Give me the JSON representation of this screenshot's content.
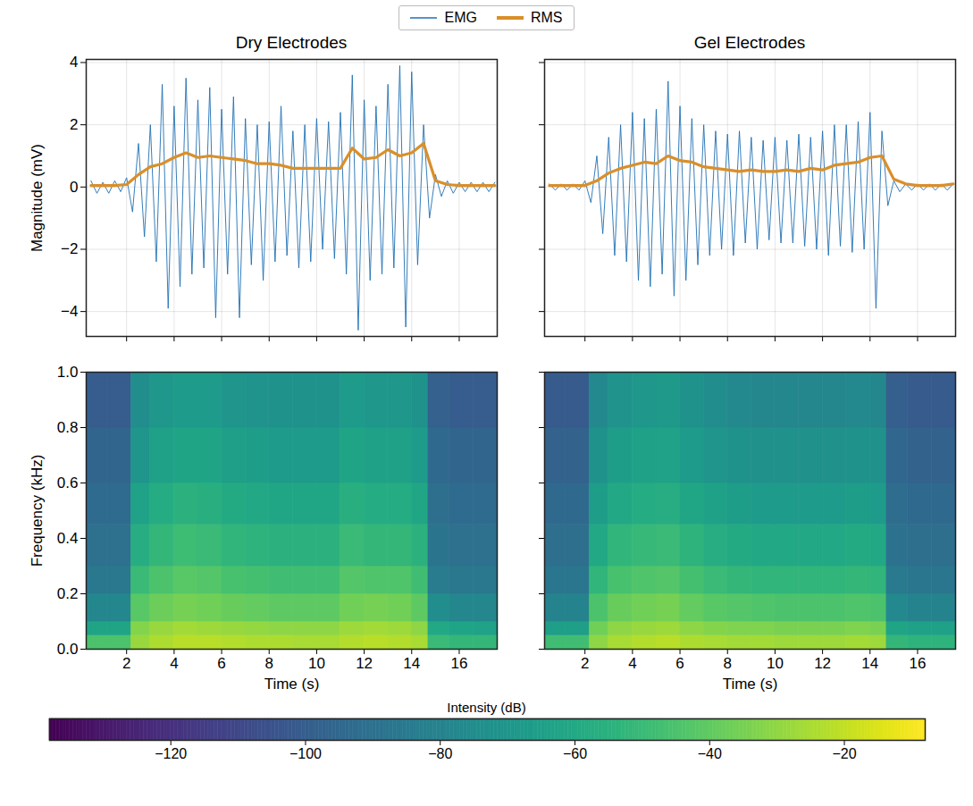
{
  "chart_data": [
    {
      "type": "line",
      "title": "Dry Electrodes",
      "ylabel": "Magnitude (mV)",
      "legend": "top",
      "grid": true,
      "tick_labels": "y",
      "xlim": [
        0.3,
        17.6
      ],
      "xticks": [
        2,
        4,
        6,
        8,
        10,
        12,
        14,
        16
      ],
      "ylim": [
        -4.8,
        4.1
      ],
      "yticks": [
        -4,
        -2,
        0,
        2,
        4
      ],
      "series": [
        {
          "name": "EMG",
          "color": "#1f6fb2",
          "x": [
            0.5,
            0.75,
            1,
            1.25,
            1.5,
            1.75,
            2,
            2.25,
            2.5,
            2.75,
            3,
            3.25,
            3.5,
            3.75,
            4,
            4.25,
            4.5,
            4.75,
            5,
            5.25,
            5.5,
            5.75,
            6,
            6.25,
            6.5,
            6.75,
            7,
            7.25,
            7.5,
            7.75,
            8,
            8.25,
            8.5,
            8.75,
            9,
            9.25,
            9.5,
            9.75,
            10,
            10.25,
            10.5,
            10.75,
            11,
            11.25,
            11.5,
            11.75,
            12,
            12.25,
            12.5,
            12.75,
            13,
            13.25,
            13.5,
            13.75,
            14,
            14.25,
            14.5,
            14.75,
            15,
            15.25,
            15.5,
            15.75,
            16,
            16.25,
            16.5,
            16.75,
            17,
            17.25,
            17.5
          ],
          "values": [
            0.2,
            -0.2,
            0.15,
            -0.2,
            0.2,
            -0.15,
            0.3,
            -0.8,
            1.4,
            -1.6,
            2.0,
            -2.4,
            3.3,
            -3.9,
            2.6,
            -3.2,
            3.5,
            -2.8,
            2.8,
            -2.6,
            3.2,
            -4.2,
            2.5,
            -2.8,
            2.9,
            -4.2,
            2.2,
            -2.5,
            2.0,
            -3.0,
            2.1,
            -2.4,
            2.6,
            -2.2,
            1.8,
            -2.6,
            2.0,
            -2.4,
            2.2,
            -2.0,
            2.1,
            -2.3,
            2.4,
            -2.8,
            3.6,
            -4.6,
            2.8,
            -3.0,
            2.6,
            -2.8,
            3.3,
            -2.6,
            3.9,
            -4.5,
            3.7,
            -2.5,
            2.0,
            -1.0,
            0.4,
            -0.3,
            0.2,
            -0.2,
            0.15,
            -0.15,
            0.15,
            -0.15,
            0.15,
            -0.15,
            0.15
          ]
        },
        {
          "name": "RMS",
          "color": "#d98f2a",
          "x": [
            0.5,
            1,
            1.5,
            2,
            2.5,
            3,
            3.5,
            4,
            4.5,
            5,
            5.5,
            6,
            6.5,
            7,
            7.5,
            8,
            8.5,
            9,
            9.5,
            10,
            10.5,
            11,
            11.5,
            12,
            12.5,
            13,
            13.5,
            14,
            14.5,
            15,
            15.5,
            16,
            16.5,
            17,
            17.5
          ],
          "values": [
            0.05,
            0.05,
            0.05,
            0.08,
            0.4,
            0.65,
            0.75,
            0.95,
            1.1,
            0.95,
            1.0,
            0.95,
            0.9,
            0.85,
            0.75,
            0.75,
            0.7,
            0.6,
            0.6,
            0.6,
            0.6,
            0.6,
            1.25,
            0.9,
            0.95,
            1.2,
            1.0,
            1.1,
            1.4,
            0.2,
            0.08,
            0.05,
            0.05,
            0.05,
            0.05
          ]
        }
      ]
    },
    {
      "type": "line",
      "title": "Gel Electrodes",
      "legend": "top",
      "grid": true,
      "tick_labels": false,
      "xlim": [
        0.3,
        17.6
      ],
      "xticks": [
        2,
        4,
        6,
        8,
        10,
        12,
        14,
        16
      ],
      "ylim": [
        -4.8,
        4.1
      ],
      "yticks": [
        -4,
        -2,
        0,
        2,
        4
      ],
      "series": [
        {
          "name": "EMG",
          "color": "#1f6fb2",
          "x": [
            0.5,
            0.75,
            1,
            1.25,
            1.5,
            1.75,
            2,
            2.25,
            2.5,
            2.75,
            3,
            3.25,
            3.5,
            3.75,
            4,
            4.25,
            4.5,
            4.75,
            5,
            5.25,
            5.5,
            5.75,
            6,
            6.25,
            6.5,
            6.75,
            7,
            7.25,
            7.5,
            7.75,
            8,
            8.25,
            8.5,
            8.75,
            9,
            9.25,
            9.5,
            9.75,
            10,
            10.25,
            10.5,
            10.75,
            11,
            11.25,
            11.5,
            11.75,
            12,
            12.25,
            12.5,
            12.75,
            13,
            13.25,
            13.5,
            13.75,
            14,
            14.25,
            14.5,
            14.75,
            15,
            15.25,
            15.5,
            15.75,
            16,
            16.25,
            16.5,
            16.75,
            17,
            17.25,
            17.5
          ],
          "values": [
            0.1,
            -0.1,
            0.1,
            -0.1,
            0.1,
            -0.1,
            0.2,
            -0.5,
            1.0,
            -1.5,
            1.6,
            -2.2,
            2.0,
            -2.4,
            2.4,
            -3.0,
            2.2,
            -3.2,
            2.5,
            -2.8,
            3.4,
            -3.5,
            2.6,
            -3.0,
            2.2,
            -2.5,
            2.0,
            -2.2,
            1.8,
            -2.0,
            1.7,
            -2.2,
            1.8,
            -1.8,
            1.6,
            -2.0,
            1.5,
            -1.7,
            1.6,
            -1.8,
            1.5,
            -1.8,
            1.7,
            -1.9,
            1.6,
            -2.0,
            1.8,
            -2.2,
            2.0,
            -1.9,
            2.0,
            -2.1,
            2.1,
            -2.0,
            2.4,
            -3.9,
            1.8,
            -0.6,
            0.2,
            -0.15,
            0.1,
            -0.1,
            0.1,
            -0.1,
            0.1,
            -0.1,
            0.1,
            -0.1,
            0.1
          ]
        },
        {
          "name": "RMS",
          "color": "#d98f2a",
          "x": [
            0.5,
            1,
            1.5,
            2,
            2.5,
            3,
            3.5,
            4,
            4.5,
            5,
            5.5,
            6,
            6.5,
            7,
            7.5,
            8,
            8.5,
            9,
            9.5,
            10,
            10.5,
            11,
            11.5,
            12,
            12.5,
            13,
            13.5,
            14,
            14.5,
            15,
            15.5,
            16,
            16.5,
            17,
            17.5
          ],
          "values": [
            0.05,
            0.05,
            0.05,
            0.05,
            0.2,
            0.45,
            0.6,
            0.7,
            0.8,
            0.75,
            1.0,
            0.85,
            0.8,
            0.65,
            0.6,
            0.55,
            0.5,
            0.55,
            0.5,
            0.5,
            0.55,
            0.5,
            0.6,
            0.55,
            0.7,
            0.75,
            0.8,
            0.95,
            1.0,
            0.25,
            0.1,
            0.05,
            0.05,
            0.05,
            0.1
          ]
        }
      ]
    },
    {
      "type": "heatmap",
      "xlabel": "Time (s)",
      "ylabel": "Frequency (kHz)",
      "grid": false,
      "xlim": [
        0.3,
        17.6
      ],
      "xticks": [
        2,
        4,
        6,
        8,
        10,
        12,
        14,
        16
      ],
      "ylim": [
        0,
        1
      ],
      "yticks": [
        {
          "value": 0,
          "label": "0.0"
        },
        0.2,
        0.4,
        0.6,
        0.8,
        {
          "value": 1,
          "label": "1.0"
        }
      ],
      "x_edges": [
        0.3,
        1.2,
        2.2,
        3,
        4,
        5,
        6,
        7,
        8,
        9,
        10,
        11,
        12,
        13,
        14,
        14.7,
        15.6,
        16.6,
        17.6
      ],
      "y_edges": [
        0,
        0.05,
        0.1,
        0.2,
        0.3,
        0.45,
        0.6,
        0.8,
        1.0
      ],
      "cells": [
        [
          -45,
          -45,
          -28,
          -24,
          -22,
          -22,
          -23,
          -24,
          -24,
          -25,
          -25,
          -23,
          -22,
          -23,
          -25,
          -50,
          -52,
          -52
        ],
        [
          -62,
          -62,
          -32,
          -28,
          -26,
          -27,
          -28,
          -29,
          -30,
          -30,
          -30,
          -27,
          -26,
          -27,
          -30,
          -60,
          -62,
          -63
        ],
        [
          -78,
          -78,
          -42,
          -37,
          -35,
          -36,
          -38,
          -39,
          -40,
          -40,
          -40,
          -36,
          -35,
          -36,
          -40,
          -75,
          -78,
          -78
        ],
        [
          -86,
          -86,
          -50,
          -45,
          -42,
          -43,
          -46,
          -47,
          -48,
          -48,
          -48,
          -43,
          -44,
          -44,
          -48,
          -84,
          -86,
          -86
        ],
        [
          -90,
          -90,
          -57,
          -52,
          -49,
          -50,
          -53,
          -54,
          -55,
          -55,
          -55,
          -50,
          -52,
          -52,
          -55,
          -88,
          -90,
          -90
        ],
        [
          -93,
          -93,
          -63,
          -58,
          -55,
          -56,
          -59,
          -60,
          -61,
          -61,
          -61,
          -56,
          -58,
          -58,
          -61,
          -91,
          -93,
          -93
        ],
        [
          -96,
          -96,
          -70,
          -64,
          -62,
          -62,
          -65,
          -66,
          -67,
          -67,
          -67,
          -62,
          -64,
          -64,
          -67,
          -94,
          -96,
          -96
        ],
        [
          -100,
          -100,
          -75,
          -69,
          -67,
          -67,
          -70,
          -71,
          -72,
          -72,
          -72,
          -67,
          -69,
          -69,
          -72,
          -98,
          -100,
          -100
        ]
      ],
      "colorbar": {
        "label": "Intensity (dB)",
        "range": [
          -138,
          -8
        ],
        "ticks": [
          -120,
          -100,
          -80,
          -60,
          -40,
          -20
        ],
        "color": "viridis"
      }
    },
    {
      "type": "heatmap",
      "xlabel": "Time (s)",
      "grid": false,
      "tick_labels": "x",
      "xlim": [
        0.3,
        17.6
      ],
      "xticks": [
        2,
        4,
        6,
        8,
        10,
        12,
        14,
        16
      ],
      "ylim": [
        0,
        1
      ],
      "yticks": [
        {
          "value": 0,
          "label": "0.0"
        },
        0.2,
        0.4,
        0.6,
        0.8,
        {
          "value": 1,
          "label": "1.0"
        }
      ],
      "x_edges": [
        0.3,
        1.2,
        2.2,
        3,
        4,
        5,
        6,
        7,
        8,
        9,
        10,
        11,
        12,
        13,
        14,
        14.7,
        15.6,
        16.6,
        17.6
      ],
      "y_edges": [
        0,
        0.05,
        0.1,
        0.2,
        0.3,
        0.45,
        0.6,
        0.8,
        1.0
      ],
      "cells": [
        [
          -48,
          -48,
          -30,
          -25,
          -23,
          -22,
          -24,
          -25,
          -26,
          -26,
          -27,
          -27,
          -27,
          -26,
          -27,
          -52,
          -54,
          -54
        ],
        [
          -65,
          -65,
          -36,
          -30,
          -28,
          -27,
          -30,
          -32,
          -33,
          -33,
          -34,
          -34,
          -34,
          -33,
          -34,
          -62,
          -64,
          -64
        ],
        [
          -80,
          -80,
          -45,
          -38,
          -36,
          -35,
          -39,
          -42,
          -43,
          -44,
          -45,
          -45,
          -45,
          -44,
          -45,
          -77,
          -80,
          -80
        ],
        [
          -87,
          -87,
          -53,
          -46,
          -44,
          -43,
          -47,
          -50,
          -52,
          -53,
          -53,
          -53,
          -53,
          -52,
          -53,
          -85,
          -87,
          -87
        ],
        [
          -91,
          -91,
          -60,
          -53,
          -51,
          -50,
          -54,
          -57,
          -59,
          -60,
          -60,
          -60,
          -60,
          -59,
          -60,
          -89,
          -91,
          -91
        ],
        [
          -94,
          -94,
          -66,
          -60,
          -58,
          -57,
          -61,
          -64,
          -66,
          -67,
          -67,
          -67,
          -67,
          -66,
          -67,
          -92,
          -94,
          -94
        ],
        [
          -97,
          -97,
          -72,
          -66,
          -64,
          -63,
          -67,
          -70,
          -72,
          -73,
          -73,
          -73,
          -73,
          -72,
          -73,
          -95,
          -97,
          -97
        ],
        [
          -101,
          -101,
          -77,
          -71,
          -69,
          -68,
          -72,
          -75,
          -77,
          -78,
          -78,
          -78,
          -78,
          -77,
          -78,
          -99,
          -101,
          -101
        ]
      ]
    }
  ]
}
